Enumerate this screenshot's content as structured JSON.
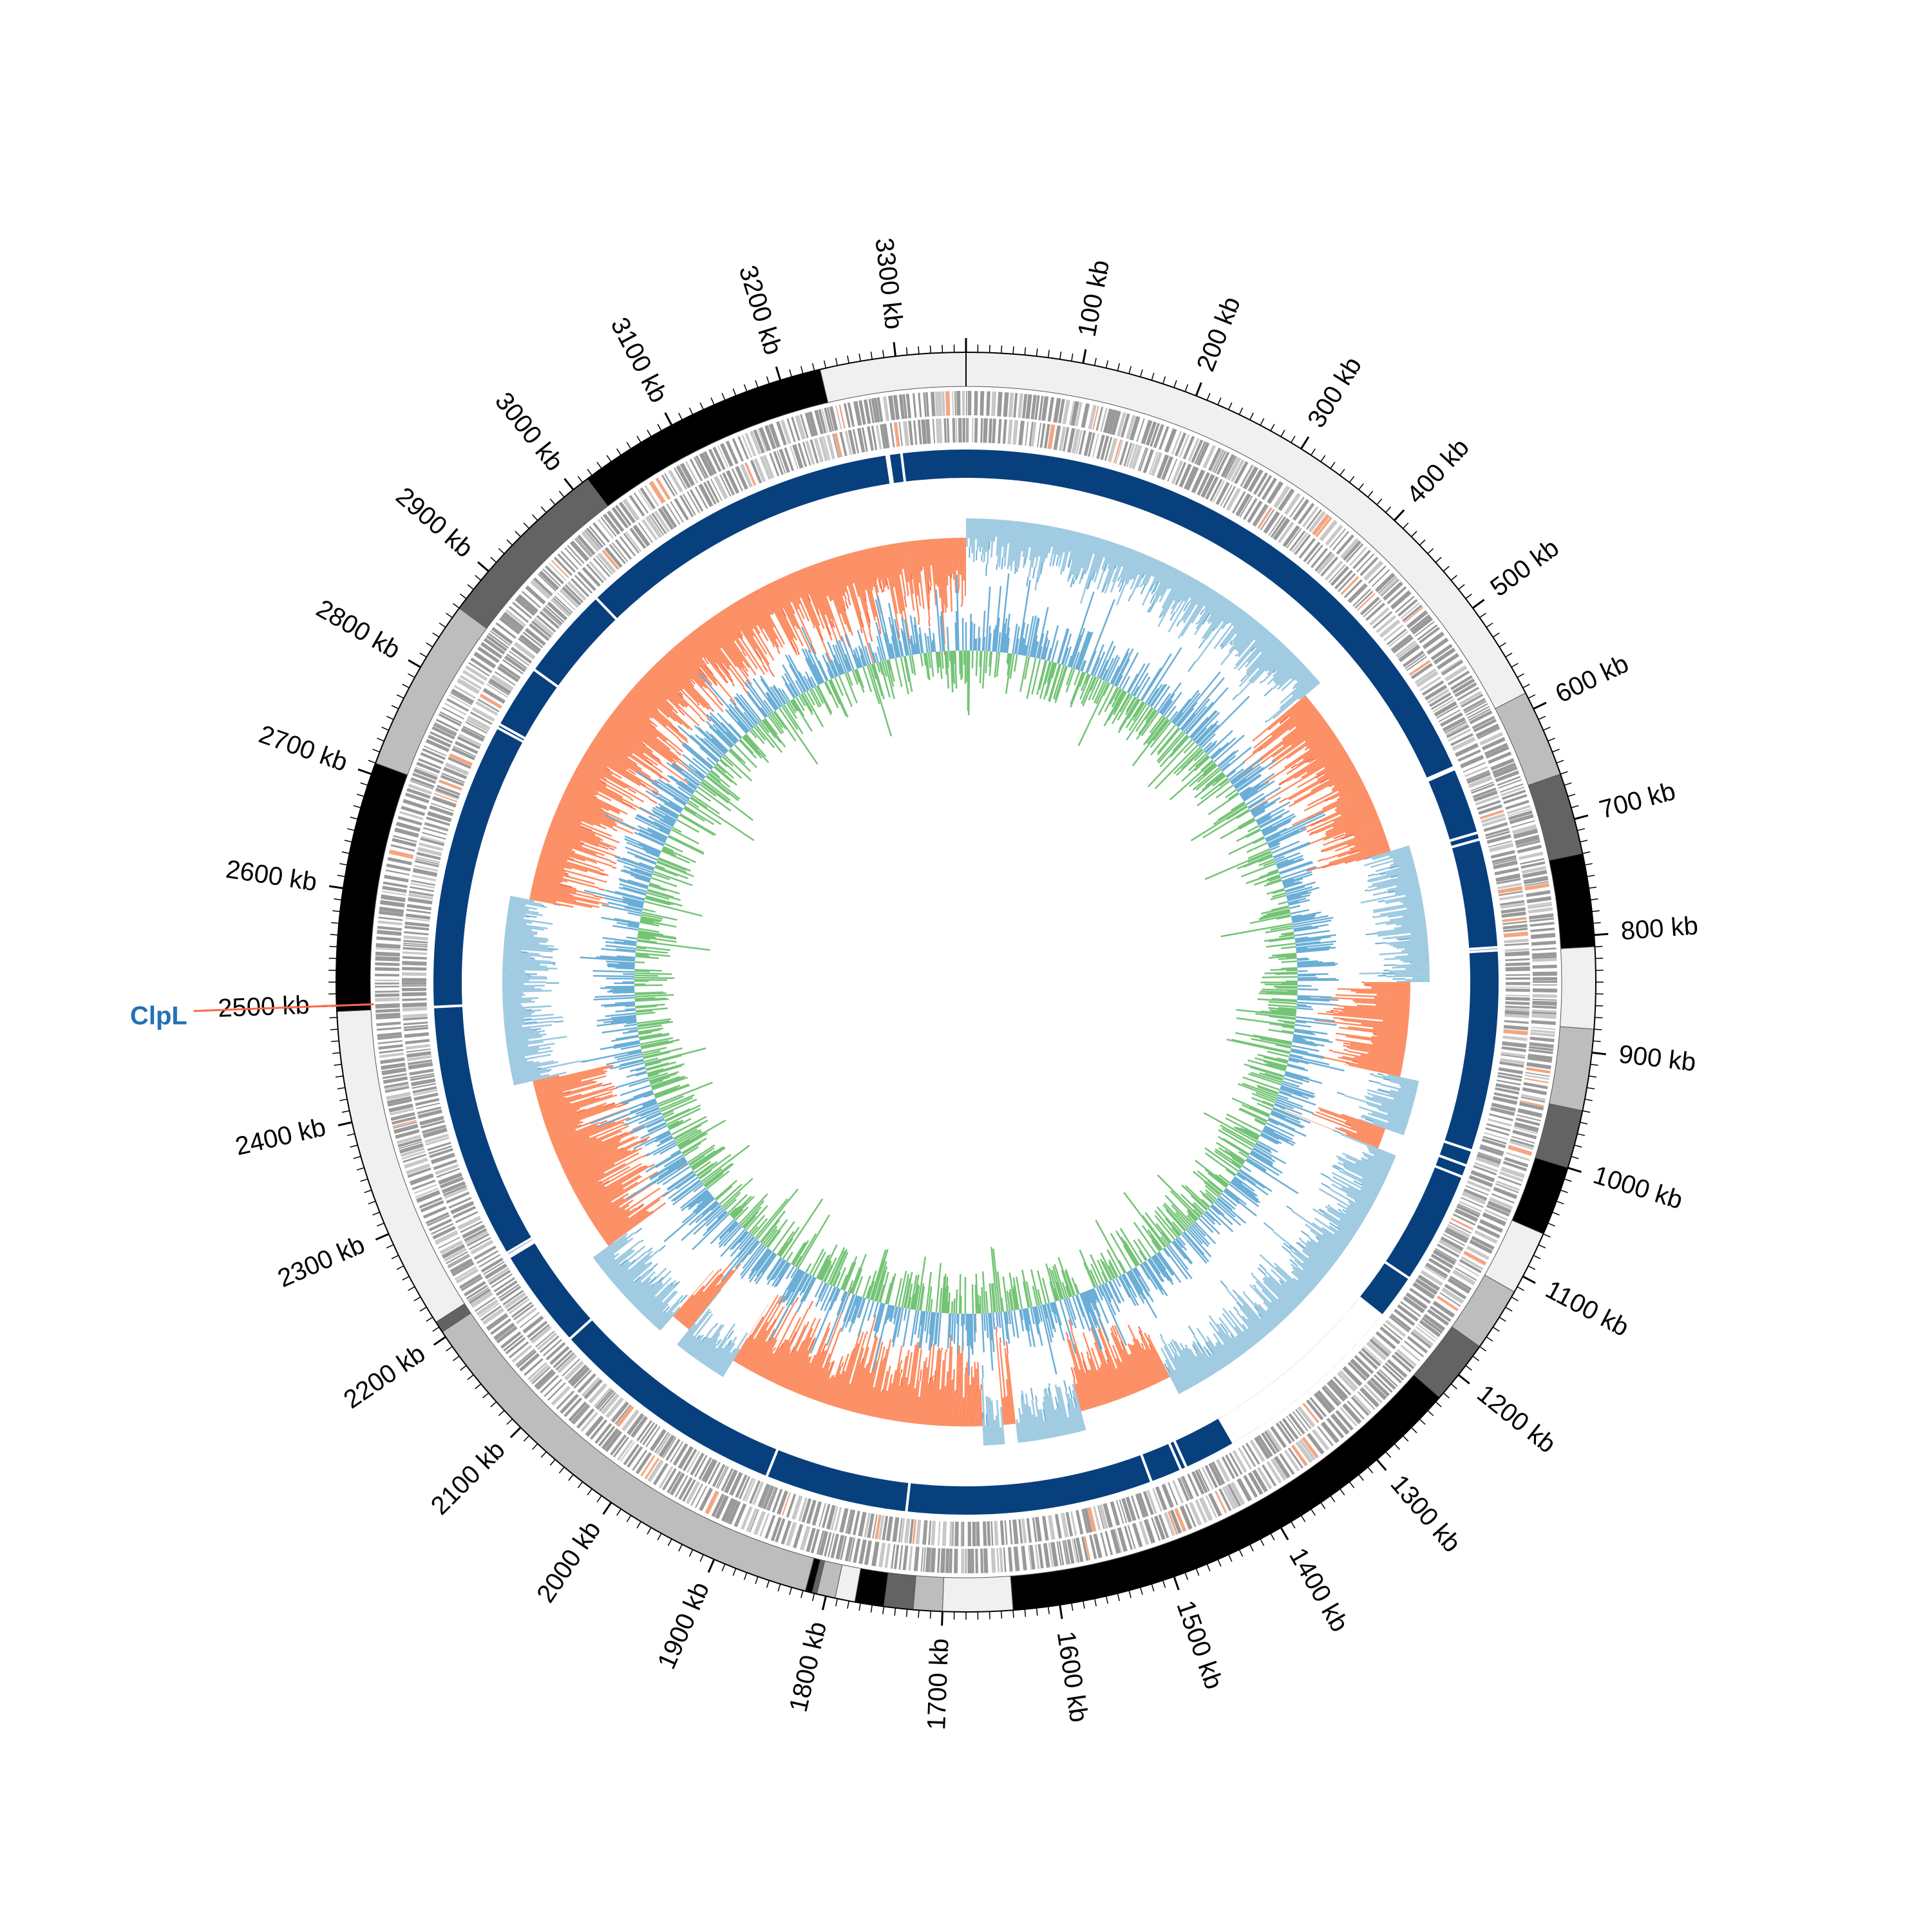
{
  "genome": {
    "length_kb": 3360,
    "tick_labels": [
      "100 kb",
      "200 kb",
      "300 kb",
      "400 kb",
      "500 kb",
      "600 kb",
      "700 kb",
      "800 kb",
      "900 kb",
      "1000 kb",
      "1100 kb",
      "1200 kb",
      "1300 kb",
      "1400 kb",
      "1500 kb",
      "1600 kb",
      "1700 kb",
      "1800 kb",
      "1900 kb",
      "2000 kb",
      "2100 kb",
      "2200 kb",
      "2300 kb",
      "2400 kb",
      "2500 kb",
      "2600 kb",
      "2700 kb",
      "2800 kb",
      "2900 kb",
      "3000 kb",
      "3100 kb",
      "3200 kb",
      "3300 kb"
    ],
    "tick_values_kb": [
      100,
      200,
      300,
      400,
      500,
      600,
      700,
      800,
      900,
      1000,
      1100,
      1200,
      1300,
      1400,
      1500,
      1600,
      1700,
      1800,
      1900,
      2000,
      2100,
      2200,
      2300,
      2400,
      2500,
      2600,
      2700,
      2800,
      2900,
      3000,
      3100,
      3200,
      3300
    ]
  },
  "contig_ring": {
    "segments": [
      {
        "start": 0,
        "end": 585,
        "color": "#f0f0f0"
      },
      {
        "start": 585,
        "end": 660,
        "color": "#bdbdbd"
      },
      {
        "start": 660,
        "end": 730,
        "color": "#636363"
      },
      {
        "start": 730,
        "end": 810,
        "color": "#000000"
      },
      {
        "start": 810,
        "end": 880,
        "color": "#f0f0f0"
      },
      {
        "start": 880,
        "end": 950,
        "color": "#bdbdbd"
      },
      {
        "start": 950,
        "end": 1000,
        "color": "#636363"
      },
      {
        "start": 1000,
        "end": 1060,
        "color": "#000000"
      },
      {
        "start": 1060,
        "end": 1115,
        "color": "#f0f0f0"
      },
      {
        "start": 1115,
        "end": 1170,
        "color": "#bdbdbd"
      },
      {
        "start": 1170,
        "end": 1225,
        "color": "#636363"
      },
      {
        "start": 1225,
        "end": 1640,
        "color": "#000000"
      },
      {
        "start": 1640,
        "end": 1700,
        "color": "#f0f0f0"
      },
      {
        "start": 1700,
        "end": 1725,
        "color": "#bdbdbd"
      },
      {
        "start": 1725,
        "end": 1750,
        "color": "#636363"
      },
      {
        "start": 1750,
        "end": 1775,
        "color": "#000000"
      },
      {
        "start": 1775,
        "end": 1792,
        "color": "#f0f0f0"
      },
      {
        "start": 1792,
        "end": 1808,
        "color": "#bdbdbd"
      },
      {
        "start": 1808,
        "end": 1812,
        "color": "#636363"
      },
      {
        "start": 1812,
        "end": 1818,
        "color": "#000000"
      },
      {
        "start": 1818,
        "end": 2205,
        "color": "#bdbdbd"
      },
      {
        "start": 2205,
        "end": 2215,
        "color": "#636363"
      },
      {
        "start": 2215,
        "end": 2495,
        "color": "#f0f0f0"
      },
      {
        "start": 2495,
        "end": 2710,
        "color": "#000000"
      },
      {
        "start": 2710,
        "end": 2860,
        "color": "#bdbdbd"
      },
      {
        "start": 2860,
        "end": 3015,
        "color": "#636363"
      },
      {
        "start": 3015,
        "end": 3235,
        "color": "#000000"
      },
      {
        "start": 3235,
        "end": 3360,
        "color": "#f0f0f0"
      }
    ]
  },
  "cds_rings": {
    "color": "#999999",
    "highlight_color": "#f4a582",
    "light_color": "#c8c8c8"
  },
  "blast_ring": {
    "color": "#08407e",
    "light_color": "#4a90d9",
    "gaps_kb": [
      3280,
      3282,
      3295,
      2950,
      2855,
      2790,
      2786,
      2495,
      2235,
      2232,
      2230,
      2128,
      1885,
      1740,
      1490,
      1458,
      1452,
      1155,
      1040,
      1028,
      1012,
      808,
      805,
      695,
      688,
      620,
      618
    ]
  },
  "skew_ring": {
    "positive_color": "#9ecae1",
    "positive_line_color": "#6baed6",
    "negative_color": "#fc8d62",
    "negative_line_color": "#fb6a4a",
    "regions": [
      {
        "start": 3290,
        "end": 3360,
        "sign": "neg"
      },
      {
        "start": 0,
        "end": 465,
        "sign": "pos"
      },
      {
        "start": 465,
        "end": 680,
        "sign": "neg"
      },
      {
        "start": 680,
        "end": 840,
        "sign": "pos"
      },
      {
        "start": 840,
        "end": 955,
        "sign": "neg"
      },
      {
        "start": 955,
        "end": 1020,
        "sign": "pos"
      },
      {
        "start": 1020,
        "end": 1045,
        "sign": "neg"
      },
      {
        "start": 1045,
        "end": 1425,
        "sign": "pos"
      },
      {
        "start": 1425,
        "end": 1540,
        "sign": "neg"
      },
      {
        "start": 1540,
        "end": 1620,
        "sign": "pos"
      },
      {
        "start": 1620,
        "end": 1635,
        "sign": "neg"
      },
      {
        "start": 1635,
        "end": 1660,
        "sign": "pos"
      },
      {
        "start": 1660,
        "end": 1975,
        "sign": "neg"
      },
      {
        "start": 1975,
        "end": 2040,
        "sign": "pos"
      },
      {
        "start": 2040,
        "end": 2065,
        "sign": "neg"
      },
      {
        "start": 2065,
        "end": 2180,
        "sign": "pos"
      },
      {
        "start": 2180,
        "end": 2400,
        "sign": "neg"
      },
      {
        "start": 2400,
        "end": 2620,
        "sign": "pos"
      },
      {
        "start": 2620,
        "end": 3290,
        "sign": "neg"
      }
    ]
  },
  "gc_ring": {
    "color_a": "#6baed6",
    "color_b": "#74c476"
  },
  "gene_marker": {
    "label": "ClpL",
    "position_kb": 2500,
    "label_color": "#2171b5",
    "line_color": "#fb6a4a"
  }
}
